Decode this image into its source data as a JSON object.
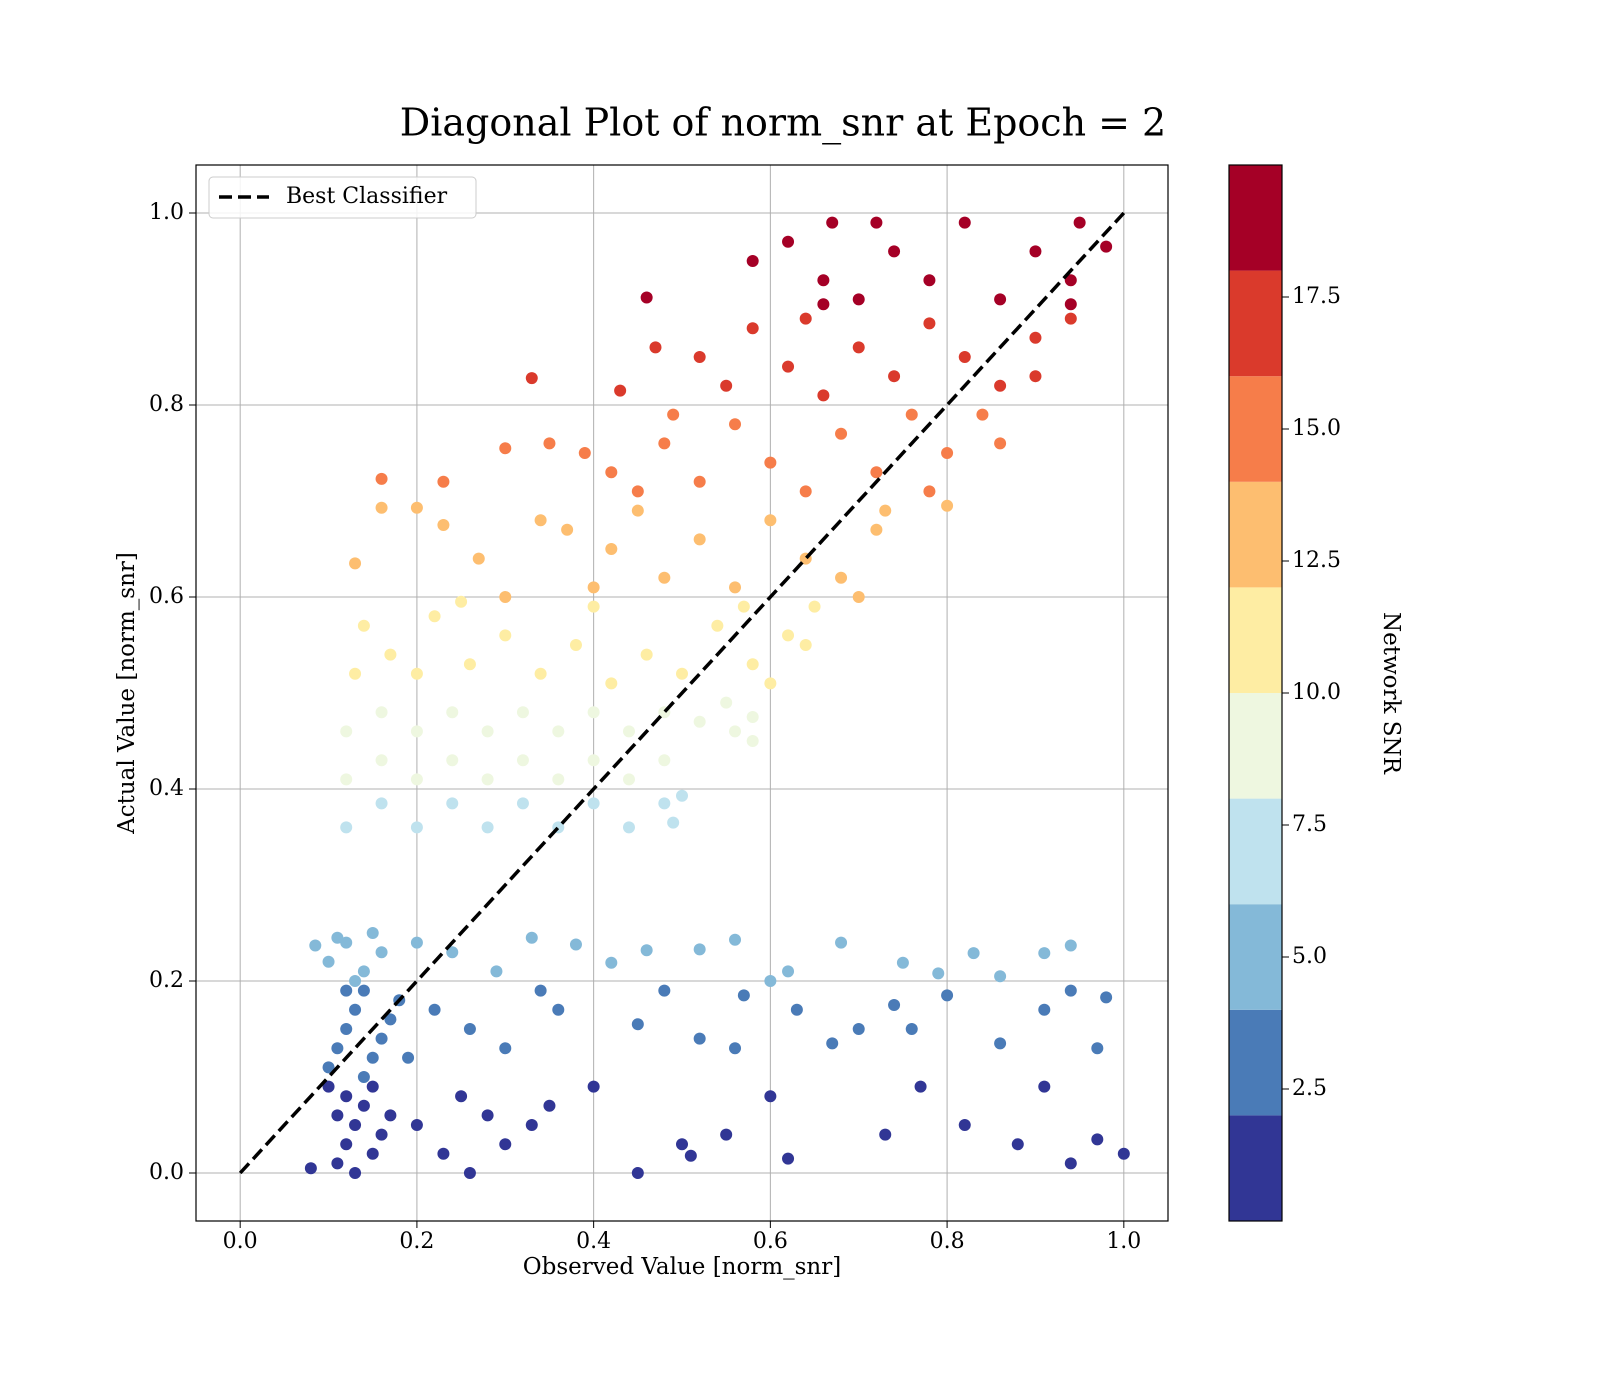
{
  "chart_data": {
    "type": "scatter",
    "title": "Diagonal Plot of norm_snr at Epoch = 2",
    "x_label": "Observed Value [norm_snr]",
    "y_label": "Actual Value [norm_snr]",
    "xlim": [
      -0.05,
      1.05
    ],
    "ylim": [
      -0.05,
      1.05
    ],
    "xticks": [
      {
        "value": 0,
        "label": "0.0"
      },
      0.2,
      0.4,
      0.6,
      0.8,
      {
        "value": 1,
        "label": "1.0"
      }
    ],
    "yticks": [
      {
        "value": 0,
        "label": "0.0"
      },
      0.2,
      0.4,
      0.6,
      0.8,
      {
        "value": 1,
        "label": "1.0"
      }
    ],
    "grid": true,
    "legend": "upper left",
    "colorbar": {
      "label": "Network SNR",
      "lim": [
        0,
        20
      ],
      "bounds": [
        0,
        2,
        4,
        6,
        8,
        10,
        12,
        14,
        16,
        18,
        20
      ],
      "colors": [
        "#313695",
        "#4a7bb7",
        "#84b9d8",
        "#bfe2ee",
        "#eef7e0",
        "#feeda3",
        "#fdbe70",
        "#f67d4a",
        "#da3a2c",
        "#a50026"
      ],
      "ticks": [
        2.5,
        {
          "value": 5,
          "label": "5.0"
        },
        7.5,
        {
          "value": 10,
          "label": "10.0"
        },
        12.5,
        {
          "value": 15,
          "label": "15.0"
        },
        17.5
      ]
    },
    "series": [
      {
        "color": "#313695",
        "x": [
          0.11,
          0.12,
          0.13,
          0.14,
          0.15,
          0.12,
          0.16,
          0.11,
          0.13,
          0.15,
          0.17,
          0.1,
          0.08,
          0.2,
          0.25,
          0.3,
          0.35,
          0.4,
          0.45,
          0.5,
          0.55,
          0.6,
          0.62,
          0.73,
          0.77,
          0.82,
          0.88,
          0.91,
          0.94,
          0.97,
          1.0,
          0.26,
          0.33,
          0.51,
          0.23,
          0.28
        ],
        "y": [
          0.01,
          0.03,
          0.05,
          0.07,
          0.09,
          0.08,
          0.04,
          0.06,
          0.0,
          0.02,
          0.06,
          0.09,
          0.005,
          0.05,
          0.08,
          0.03,
          0.07,
          0.09,
          0.0,
          0.03,
          0.04,
          0.08,
          0.015,
          0.04,
          0.09,
          0.05,
          0.03,
          0.09,
          0.01,
          0.035,
          0.02,
          0.0,
          0.05,
          0.018,
          0.02,
          0.06
        ]
      },
      {
        "color": "#4a7bb7",
        "x": [
          0.1,
          0.11,
          0.12,
          0.13,
          0.14,
          0.15,
          0.16,
          0.17,
          0.18,
          0.12,
          0.14,
          0.19,
          0.22,
          0.26,
          0.3,
          0.34,
          0.36,
          0.45,
          0.48,
          0.52,
          0.56,
          0.57,
          0.63,
          0.67,
          0.7,
          0.74,
          0.76,
          0.8,
          0.86,
          0.91,
          0.94,
          0.97,
          0.98
        ],
        "y": [
          0.11,
          0.13,
          0.15,
          0.17,
          0.19,
          0.12,
          0.14,
          0.16,
          0.18,
          0.19,
          0.1,
          0.12,
          0.17,
          0.15,
          0.13,
          0.19,
          0.17,
          0.155,
          0.19,
          0.14,
          0.13,
          0.185,
          0.17,
          0.135,
          0.15,
          0.175,
          0.15,
          0.185,
          0.135,
          0.17,
          0.19,
          0.13,
          0.183
        ]
      },
      {
        "color": "#84b9d8",
        "x": [
          0.1,
          0.12,
          0.14,
          0.16,
          0.11,
          0.15,
          0.13,
          0.2,
          0.24,
          0.29,
          0.33,
          0.38,
          0.42,
          0.46,
          0.52,
          0.56,
          0.6,
          0.68,
          0.75,
          0.79,
          0.83,
          0.86,
          0.91,
          0.94,
          0.62,
          0.085
        ],
        "y": [
          0.22,
          0.24,
          0.21,
          0.23,
          0.245,
          0.25,
          0.2,
          0.24,
          0.23,
          0.21,
          0.245,
          0.238,
          0.219,
          0.232,
          0.233,
          0.243,
          0.2,
          0.24,
          0.219,
          0.208,
          0.229,
          0.205,
          0.229,
          0.237,
          0.21,
          0.237
        ]
      },
      {
        "color": "#bfe2ee",
        "x": [
          0.12,
          0.16,
          0.2,
          0.24,
          0.28,
          0.32,
          0.36,
          0.4,
          0.44,
          0.48,
          0.49,
          0.5
        ],
        "y": [
          0.36,
          0.385,
          0.36,
          0.385,
          0.36,
          0.385,
          0.36,
          0.385,
          0.36,
          0.385,
          0.365,
          0.393
        ]
      },
      {
        "color": "#eef7e0",
        "x": [
          0.12,
          0.12,
          0.16,
          0.16,
          0.2,
          0.2,
          0.24,
          0.24,
          0.28,
          0.28,
          0.32,
          0.32,
          0.36,
          0.36,
          0.4,
          0.4,
          0.44,
          0.44,
          0.48,
          0.48,
          0.52,
          0.55,
          0.56,
          0.58,
          0.58
        ],
        "y": [
          0.41,
          0.46,
          0.43,
          0.48,
          0.41,
          0.46,
          0.43,
          0.48,
          0.41,
          0.46,
          0.43,
          0.48,
          0.41,
          0.46,
          0.43,
          0.48,
          0.41,
          0.46,
          0.43,
          0.48,
          0.47,
          0.49,
          0.46,
          0.475,
          0.45
        ]
      },
      {
        "color": "#feeda3",
        "x": [
          0.13,
          0.14,
          0.17,
          0.2,
          0.22,
          0.26,
          0.3,
          0.34,
          0.38,
          0.42,
          0.46,
          0.5,
          0.54,
          0.58,
          0.62,
          0.57,
          0.65,
          0.64,
          0.6,
          0.25,
          0.4
        ],
        "y": [
          0.52,
          0.57,
          0.54,
          0.52,
          0.58,
          0.53,
          0.56,
          0.52,
          0.55,
          0.51,
          0.54,
          0.52,
          0.57,
          0.53,
          0.56,
          0.59,
          0.59,
          0.55,
          0.51,
          0.595,
          0.59
        ]
      },
      {
        "color": "#fdbe70",
        "x": [
          0.13,
          0.16,
          0.2,
          0.23,
          0.27,
          0.3,
          0.34,
          0.37,
          0.4,
          0.42,
          0.45,
          0.48,
          0.52,
          0.56,
          0.6,
          0.64,
          0.68,
          0.72,
          0.73,
          0.7,
          0.8
        ],
        "y": [
          0.635,
          0.693,
          0.693,
          0.675,
          0.64,
          0.6,
          0.68,
          0.67,
          0.61,
          0.65,
          0.69,
          0.62,
          0.66,
          0.61,
          0.68,
          0.64,
          0.62,
          0.67,
          0.69,
          0.6,
          0.695
        ]
      },
      {
        "color": "#f67d4a",
        "x": [
          0.16,
          0.23,
          0.3,
          0.35,
          0.39,
          0.42,
          0.45,
          0.48,
          0.52,
          0.56,
          0.6,
          0.64,
          0.68,
          0.72,
          0.76,
          0.8,
          0.84,
          0.86,
          0.78,
          0.49
        ],
        "y": [
          0.723,
          0.72,
          0.755,
          0.76,
          0.75,
          0.73,
          0.71,
          0.76,
          0.72,
          0.78,
          0.74,
          0.71,
          0.77,
          0.73,
          0.79,
          0.75,
          0.79,
          0.76,
          0.71,
          0.79
        ]
      },
      {
        "color": "#da3a2c",
        "x": [
          0.33,
          0.43,
          0.47,
          0.52,
          0.55,
          0.58,
          0.62,
          0.66,
          0.7,
          0.74,
          0.78,
          0.82,
          0.86,
          0.9,
          0.9,
          0.94,
          0.64
        ],
        "y": [
          0.828,
          0.815,
          0.86,
          0.85,
          0.82,
          0.88,
          0.84,
          0.81,
          0.86,
          0.83,
          0.885,
          0.85,
          0.82,
          0.87,
          0.83,
          0.89,
          0.89
        ]
      },
      {
        "color": "#a50026",
        "x": [
          0.46,
          0.58,
          0.62,
          0.66,
          0.67,
          0.7,
          0.74,
          0.78,
          0.82,
          0.86,
          0.9,
          0.94,
          0.95,
          0.98,
          0.94,
          0.66,
          0.72
        ],
        "y": [
          0.912,
          0.95,
          0.97,
          0.93,
          0.99,
          0.91,
          0.96,
          0.93,
          0.99,
          0.91,
          0.96,
          0.93,
          0.99,
          0.965,
          0.905,
          0.905,
          0.99
        ]
      },
      {
        "type": "line",
        "name": "Best Classifier",
        "color": "#000000",
        "dashed": true,
        "x": [
          0,
          1
        ],
        "y": [
          0,
          1
        ]
      }
    ]
  }
}
